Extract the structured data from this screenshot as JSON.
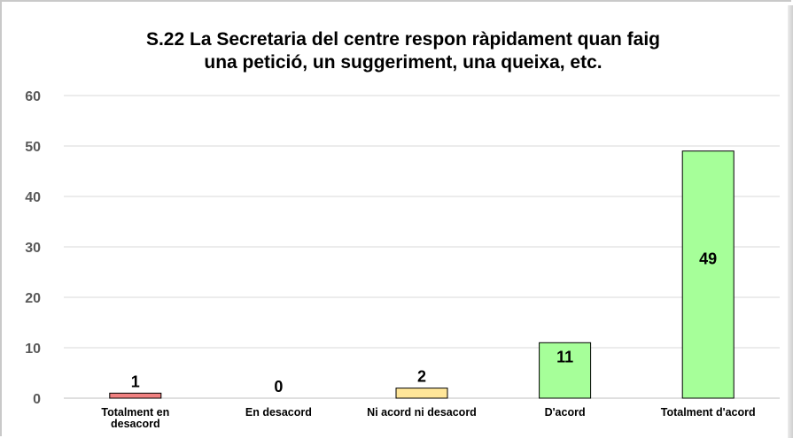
{
  "chart_data": {
    "type": "bar",
    "title_lines": [
      "S.22 La Secretaria del centre respon ràpidament quan faig",
      "una petició, un suggeriment, una queixa, etc."
    ],
    "categories": [
      "Totalment en desacord",
      "En desacord",
      "Ni acord ni desacord",
      "D'acord",
      "Totalment d'acord"
    ],
    "category_lines": [
      [
        "Totalment en",
        "desacord"
      ],
      [
        "En desacord"
      ],
      [
        "Ni acord ni desacord"
      ],
      [
        "D'acord"
      ],
      [
        "Totalment d'acord"
      ]
    ],
    "values": [
      1,
      0,
      2,
      11,
      49
    ],
    "data_labels": [
      "1",
      "0",
      "2",
      "11",
      "49"
    ],
    "bar_colors": [
      "#f08080",
      "#f08080",
      "#ffe699",
      "#a6ff99",
      "#a6ff99"
    ],
    "ylim": [
      0,
      60
    ],
    "yticks": [
      0,
      10,
      20,
      30,
      40,
      50,
      60
    ],
    "grid": true,
    "xlabel": "",
    "ylabel": ""
  }
}
